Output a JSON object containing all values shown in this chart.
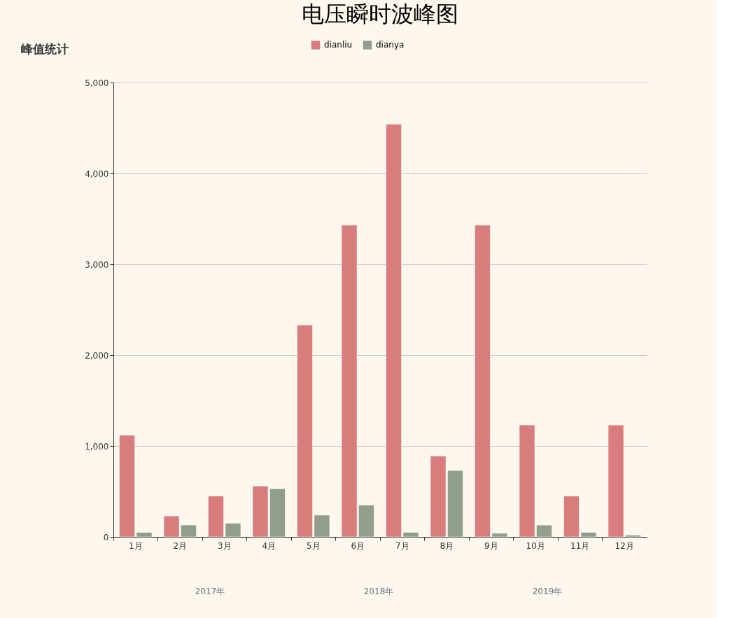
{
  "chart_data": {
    "type": "bar",
    "title": "电压瞬时波峰图",
    "subtitle": "峰值统计",
    "categories": [
      "1月",
      "2月",
      "3月",
      "4月",
      "5月",
      "6月",
      "7月",
      "8月",
      "9月",
      "10月",
      "11月",
      "12月"
    ],
    "series": [
      {
        "name": "dianliu",
        "color": "#d87c7c",
        "values": [
          1120,
          230,
          450,
          560,
          2330,
          3430,
          4540,
          890,
          3430,
          1230,
          450,
          1230
        ]
      },
      {
        "name": "dianya",
        "color": "#919e8b",
        "values": [
          50,
          130,
          150,
          530,
          240,
          350,
          50,
          730,
          40,
          130,
          50,
          20
        ]
      }
    ],
    "ylim": [
      0,
      5000
    ],
    "yticks": [
      0,
      {
        "value": 1000,
        "label": "1,000"
      },
      {
        "value": 2000,
        "label": "2,000"
      },
      {
        "value": 3000,
        "label": "3,000"
      },
      {
        "value": 4000,
        "label": "4,000"
      },
      {
        "value": 5000,
        "label": "5,000"
      }
    ],
    "grid": "y",
    "legend": "top",
    "annotations": [
      "2017年",
      "2018年",
      "2019年"
    ]
  }
}
